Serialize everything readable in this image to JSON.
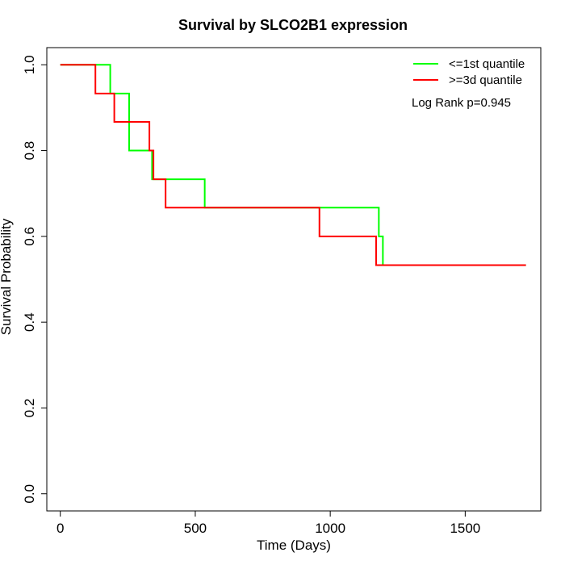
{
  "chart_data": {
    "type": "line",
    "title": "Survival by SLCO2B1 expression",
    "xlabel": "Time (Days)",
    "ylabel": "Survival Probability",
    "xlim": [
      -50,
      1780
    ],
    "ylim": [
      -0.04,
      1.04
    ],
    "xticks": [
      0,
      500,
      1000,
      1500
    ],
    "xtick_labels": [
      "0",
      "500",
      "1000",
      "1500"
    ],
    "yticks": [
      0.0,
      0.2,
      0.4,
      0.6,
      0.8,
      1.0
    ],
    "ytick_labels": [
      "0.0",
      "0.2",
      "0.4",
      "0.6",
      "0.8",
      "1.0"
    ],
    "grid": false,
    "legend_position": "top-right",
    "annotation": "Log Rank p=0.945",
    "series": [
      {
        "name": "<=1st quantile",
        "color": "#00ff00",
        "step": true,
        "x": [
          0,
          185,
          255,
          340,
          535,
          1180,
          1195,
          1725
        ],
        "y": [
          1.0,
          0.933,
          0.8,
          0.733,
          0.667,
          0.6,
          0.533,
          0.533
        ]
      },
      {
        "name": ">=3d quantile",
        "color": "#ff0000",
        "step": true,
        "x": [
          0,
          130,
          200,
          330,
          345,
          390,
          960,
          1170,
          1725
        ],
        "y": [
          1.0,
          0.933,
          0.867,
          0.8,
          0.733,
          0.667,
          0.6,
          0.533,
          0.533
        ]
      }
    ]
  }
}
